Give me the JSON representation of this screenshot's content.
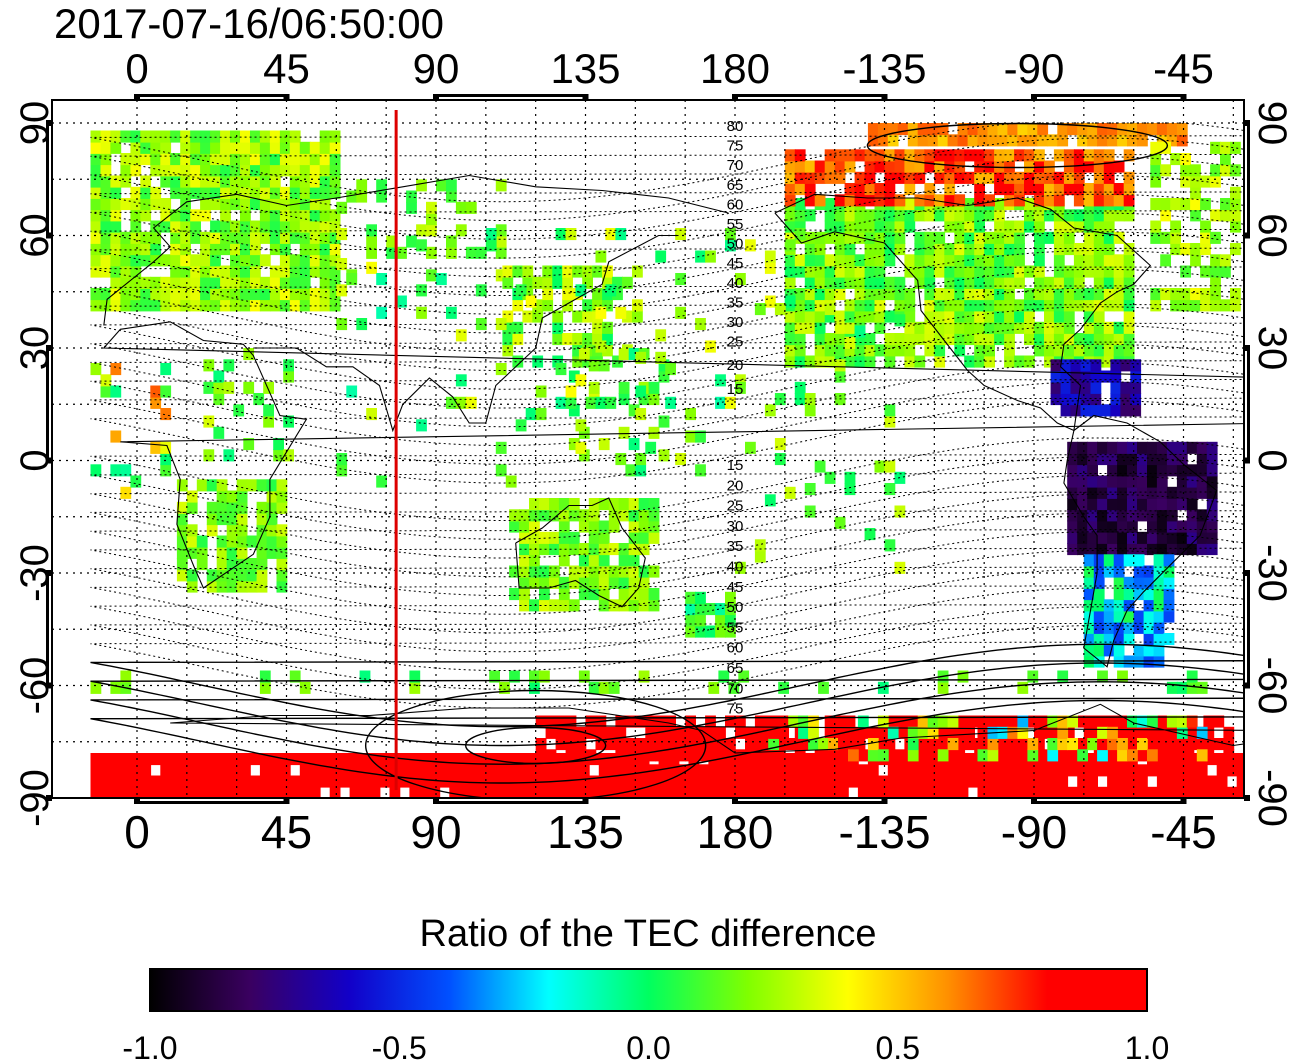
{
  "timestamp": "2017-07-16/06:50:00",
  "colorbar": {
    "title": "Ratio of the TEC difference",
    "min": -1.0,
    "max": 1.0,
    "tick_labels": [
      "-1.0",
      "-0.5",
      "0.0",
      "0.5",
      "1.0"
    ],
    "colors": [
      "#000000",
      "#3a0060",
      "#1200c8",
      "#0050ff",
      "#00ffff",
      "#00ff60",
      "#80ff00",
      "#ffff00",
      "#ff9000",
      "#ff0000",
      "#ff0000"
    ]
  },
  "map": {
    "lon_tick_labels": [
      "0",
      "45",
      "90",
      "135",
      "180",
      "-135",
      "-90",
      "-45"
    ],
    "lat_tick_labels": [
      "90",
      "60",
      "30",
      "0",
      "-30",
      "-60",
      "-90"
    ],
    "meridian_marker": {
      "longitude": 78,
      "color": "#dd0000"
    },
    "north_contour_labels": [
      "80",
      "75",
      "70",
      "65",
      "60",
      "55",
      "50",
      "45",
      "40",
      "35",
      "30",
      "25",
      "20",
      "15"
    ],
    "south_contour_labels": [
      "15",
      "20",
      "25",
      "30",
      "35",
      "40",
      "45",
      "50",
      "55",
      "60",
      "65",
      "70",
      "75"
    ]
  }
}
